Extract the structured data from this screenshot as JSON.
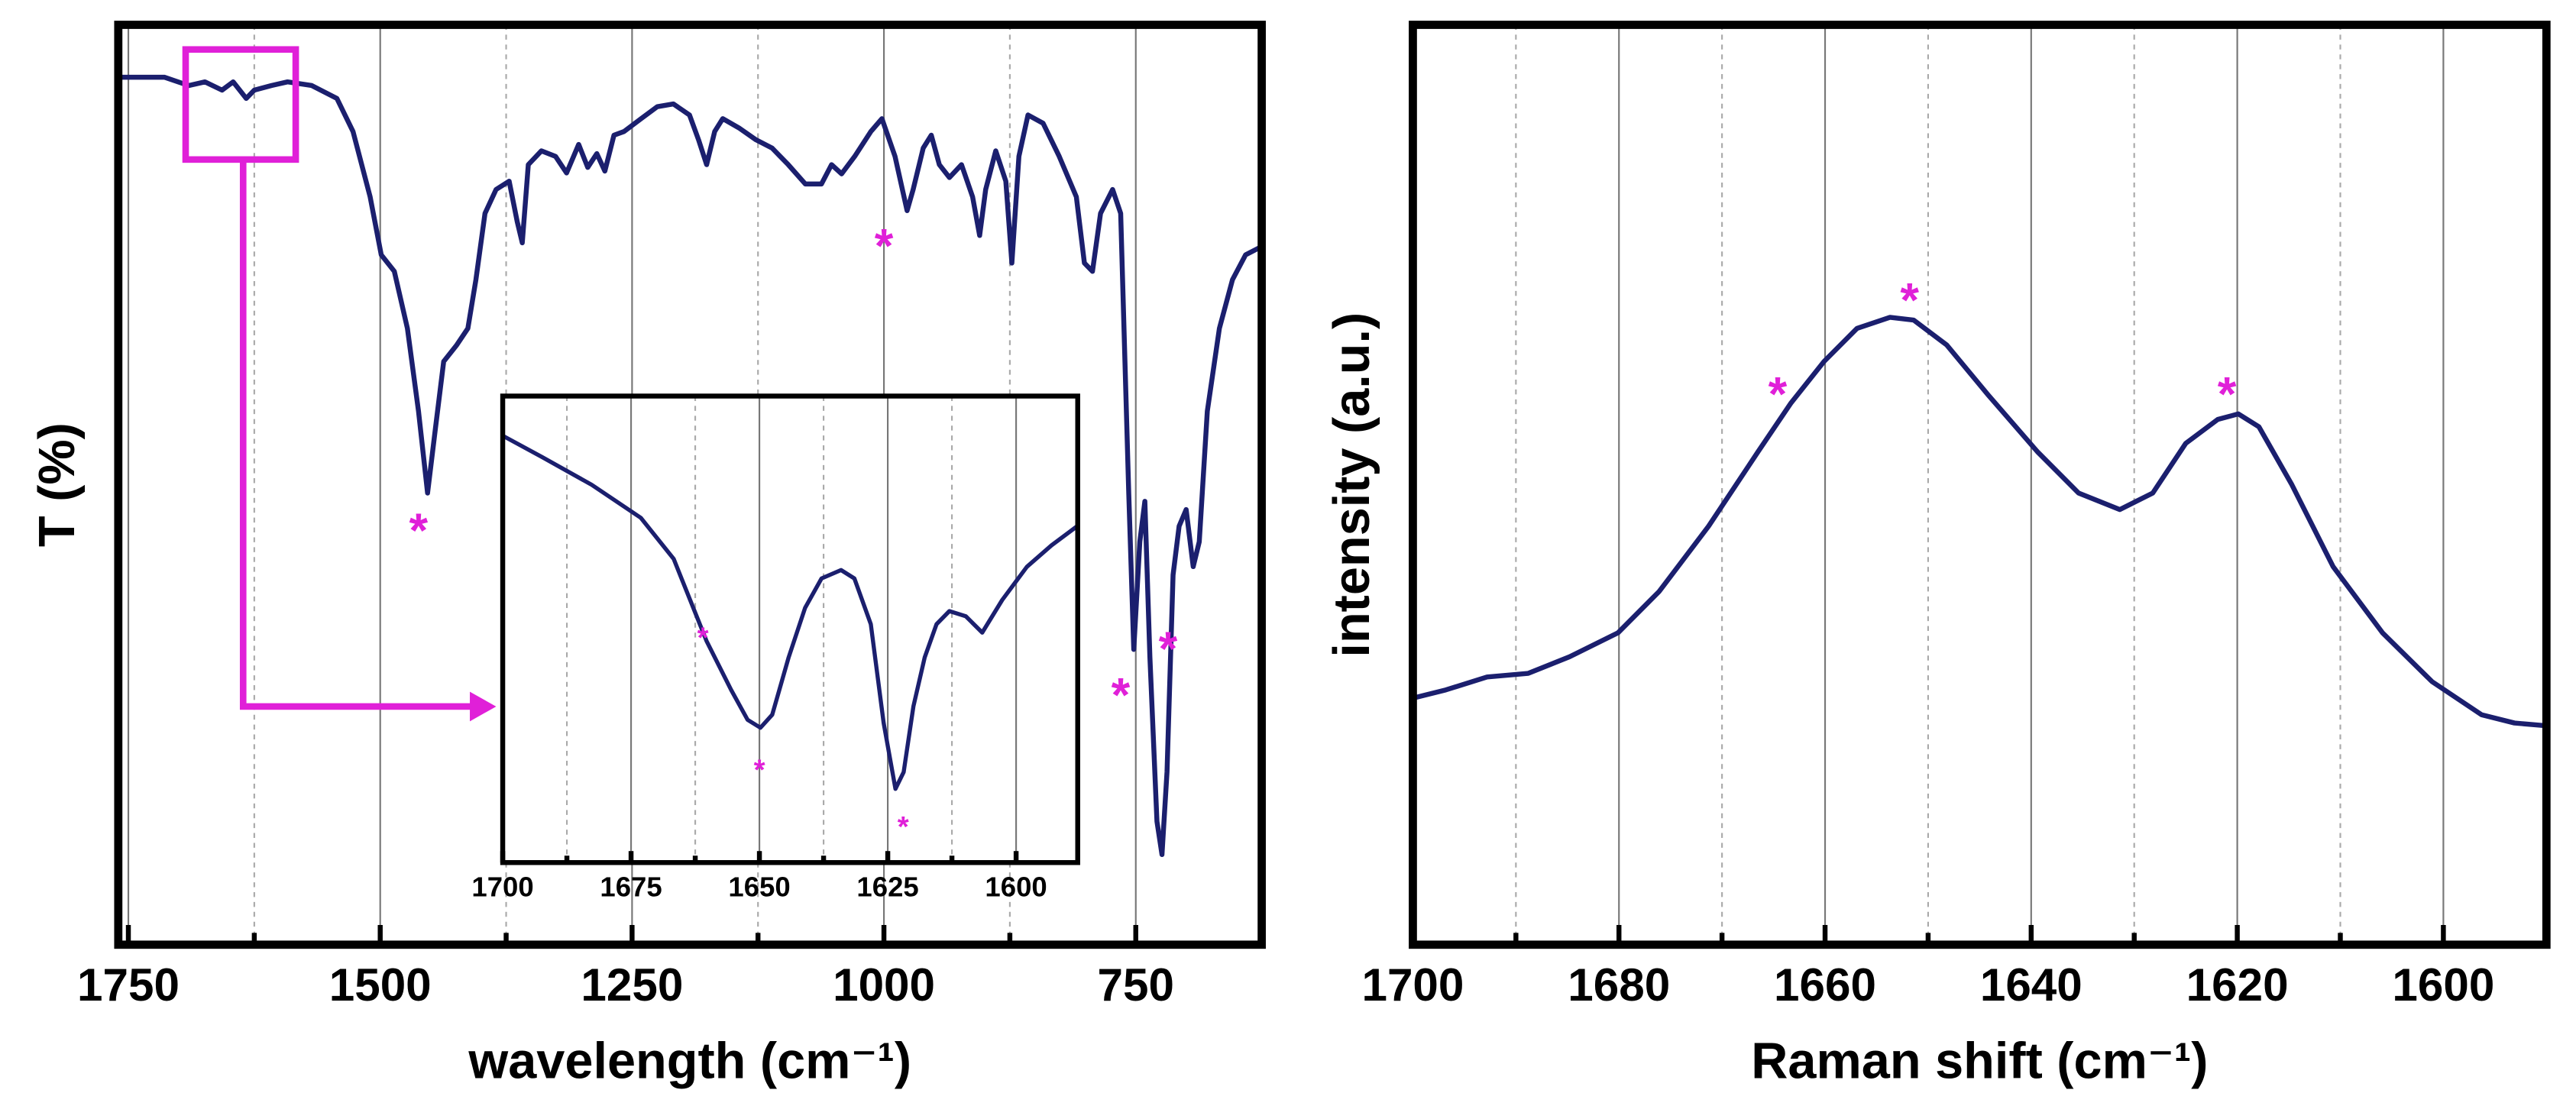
{
  "chart_data": [
    {
      "type": "line",
      "x_label": "wavelength (cm⁻¹)",
      "y_label": "T (%)",
      "color": "#1b1f6e",
      "xlim": [
        1760,
        625
      ],
      "ylim": [
        0,
        100
      ],
      "xticks": [
        1750,
        1500,
        1250,
        1000,
        750
      ],
      "minor_xticks": [
        1625,
        1375,
        1125,
        875
      ],
      "grid": true,
      "x": [
        1760,
        1714,
        1690,
        1674,
        1657,
        1646,
        1633,
        1625,
        1608,
        1592,
        1568,
        1543,
        1527,
        1510,
        1499,
        1486,
        1473,
        1462,
        1453,
        1445,
        1437,
        1424,
        1413,
        1405,
        1396,
        1385,
        1372,
        1364,
        1359,
        1353,
        1340,
        1326,
        1315,
        1303,
        1294,
        1285,
        1277,
        1268,
        1258,
        1241,
        1225,
        1209,
        1193,
        1184,
        1176,
        1168,
        1160,
        1144,
        1127,
        1111,
        1095,
        1078,
        1062,
        1052,
        1042,
        1029,
        1013,
        1002,
        989,
        977,
        971,
        961,
        953,
        945,
        935,
        923,
        912,
        905,
        899,
        889,
        879,
        873,
        866,
        857,
        842,
        826,
        809,
        801,
        793,
        785,
        773,
        765,
        757,
        752,
        746,
        741,
        736,
        729,
        724,
        719,
        713,
        707,
        700,
        693,
        687,
        679,
        667,
        654,
        641,
        625
      ],
      "values": [
        94.3,
        94.3,
        93.4,
        93.8,
        92.9,
        93.8,
        92,
        92.9,
        93.4,
        93.8,
        93.4,
        92,
        88.4,
        81.3,
        75,
        73.2,
        67,
        58,
        49.1,
        56.3,
        63.4,
        65.2,
        67,
        72.3,
        79.5,
        82.1,
        83,
        78.6,
        76.3,
        84.8,
        86.3,
        85.7,
        83.9,
        87,
        84.5,
        86,
        84.1,
        88,
        88.4,
        89.8,
        91.1,
        91.4,
        90.2,
        87.5,
        84.8,
        88.4,
        89.8,
        88.8,
        87.5,
        86.6,
        84.8,
        82.7,
        82.7,
        84.8,
        83.8,
        85.7,
        88.4,
        89.8,
        85.7,
        79.8,
        82.1,
        86.6,
        88,
        84.8,
        83.4,
        84.8,
        81.3,
        77.1,
        82.1,
        86.3,
        83,
        74.1,
        85.7,
        90.2,
        89.3,
        85.7,
        81.3,
        74.1,
        73.2,
        79.5,
        82.1,
        79.5,
        49.1,
        32.1,
        43.8,
        48.2,
        31.3,
        13.4,
        9.8,
        18.8,
        40.2,
        45.5,
        47.3,
        41.1,
        43.8,
        58,
        67,
        72.3,
        75,
        75.9
      ],
      "annotation_color": "#e020d8",
      "annotations": [
        {
          "text": "*",
          "x": 1462,
          "y": 45.9
        },
        {
          "text": "*",
          "x": 1000,
          "y": 76.8
        },
        {
          "text": "*",
          "x": 765,
          "y": 28
        },
        {
          "text": "*",
          "x": 718,
          "y": 33
        }
      ]
    },
    {
      "type": "line",
      "color": "#1b1f6e",
      "xlim": [
        1700,
        1588
      ],
      "ylim": [
        0,
        100
      ],
      "xticks": [
        1700,
        1675,
        1650,
        1625,
        1600
      ],
      "minor_xticks": [
        1687.5,
        1662.5,
        1637.5,
        1612.5
      ],
      "grid": true,
      "x": [
        1700,
        1692.3,
        1682.7,
        1673.1,
        1666.7,
        1663.5,
        1660.3,
        1655.5,
        1652.3,
        1649.8,
        1647.5,
        1644.3,
        1641.1,
        1637.9,
        1634.1,
        1631.5,
        1628.3,
        1625.8,
        1623.5,
        1621.9,
        1620,
        1617.8,
        1615.5,
        1613,
        1609.8,
        1606.6,
        1602.7,
        1597.9,
        1593.1,
        1588
      ],
      "values": [
        91.5,
        86.9,
        81,
        73.9,
        65.1,
        56.3,
        47.5,
        37,
        30.6,
        28.9,
        31.7,
        44,
        54.6,
        60.9,
        62.7,
        60.9,
        51.1,
        29.9,
        15.8,
        19.4,
        33.5,
        44,
        51.1,
        53.9,
        52.8,
        49.3,
        56.3,
        63.4,
        68,
        72.2
      ],
      "annotation_color": "#e020d8",
      "annotations": [
        {
          "text": "*",
          "x": 1661,
          "y": 49.3
        },
        {
          "text": "*",
          "x": 1650,
          "y": 21
        },
        {
          "text": "*",
          "x": 1622,
          "y": 8.8
        }
      ]
    },
    {
      "type": "line",
      "x_label": "Raman shift (cm⁻¹)",
      "y_label": "intensity (a.u.)",
      "color": "#1b1f6e",
      "xlim": [
        1700,
        1590
      ],
      "ylim": [
        0,
        100
      ],
      "xticks": [
        1700,
        1680,
        1660,
        1640,
        1620,
        1600
      ],
      "minor_xticks": [
        1690,
        1670,
        1650,
        1630,
        1610
      ],
      "grid": true,
      "x": [
        1700,
        1696.8,
        1692.8,
        1688.8,
        1684.8,
        1680.1,
        1676.1,
        1671.3,
        1666.5,
        1663.3,
        1660.1,
        1656.9,
        1653.7,
        1651.4,
        1648.2,
        1644.2,
        1639.4,
        1635.4,
        1631.4,
        1628.2,
        1625,
        1621.9,
        1619.9,
        1617.9,
        1614.7,
        1610.7,
        1605.9,
        1601.1,
        1596.3,
        1593.1,
        1590
      ],
      "values": [
        26.8,
        27.7,
        29.1,
        29.5,
        31.3,
        33.9,
        38.4,
        45.5,
        53.6,
        58.9,
        63.4,
        67,
        68.2,
        67.9,
        65.2,
        59.8,
        53.6,
        49.1,
        47.3,
        49.1,
        54.5,
        57.1,
        57.7,
        56.3,
        50,
        41.1,
        33.9,
        28.6,
        25,
        24.1,
        23.8
      ],
      "annotation_color": "#e020d8",
      "annotations": [
        {
          "text": "*",
          "x": 1664.6,
          "y": 60.7
        },
        {
          "text": "*",
          "x": 1651.8,
          "y": 70.9
        },
        {
          "text": "*",
          "x": 1621,
          "y": 60.7
        }
      ]
    }
  ]
}
